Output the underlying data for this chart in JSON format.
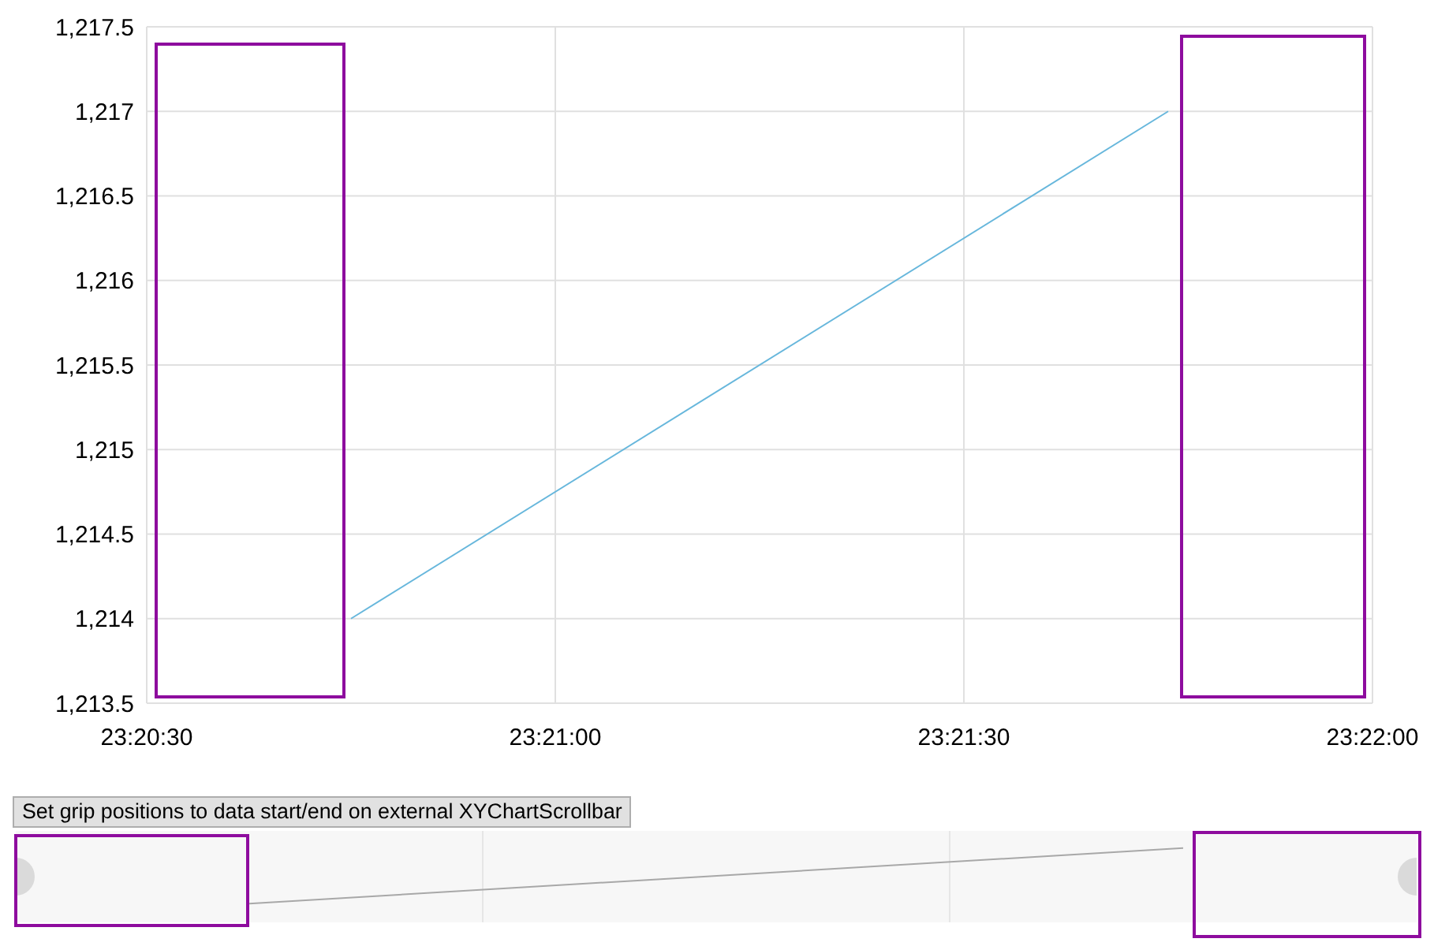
{
  "chart_data": {
    "type": "line",
    "x": [
      23.345833,
      23.3625
    ],
    "series": [
      {
        "color": "#67b7dc",
        "values": [
          1214,
          1217
        ]
      }
    ],
    "xlim": [
      23.341667,
      23.366667
    ],
    "xticks": [
      {
        "value": 23.341667,
        "label": "23:20:30"
      },
      {
        "value": 23.35,
        "label": "23:21:00"
      },
      {
        "value": 23.358333,
        "label": "23:21:30"
      },
      {
        "value": 23.366667,
        "label": "23:22:00"
      }
    ],
    "ylim": [
      1213.5,
      1217.5
    ],
    "yticks": [
      {
        "value": 1213.5,
        "label": "1,213.5"
      },
      {
        "value": 1214,
        "label": "1,214"
      },
      {
        "value": 1214.5,
        "label": "1,214.5"
      },
      {
        "value": 1215,
        "label": "1,215"
      },
      {
        "value": 1215.5,
        "label": "1,215.5"
      },
      {
        "value": 1216,
        "label": "1,216"
      },
      {
        "value": 1216.5,
        "label": "1,216.5"
      },
      {
        "value": 1217,
        "label": "1,217"
      },
      {
        "value": 1217.5,
        "label": "1,217.5"
      }
    ],
    "grid": true,
    "annotations": [
      "Set grip positions to data start/end on external XYChartScrollbar"
    ]
  }
}
